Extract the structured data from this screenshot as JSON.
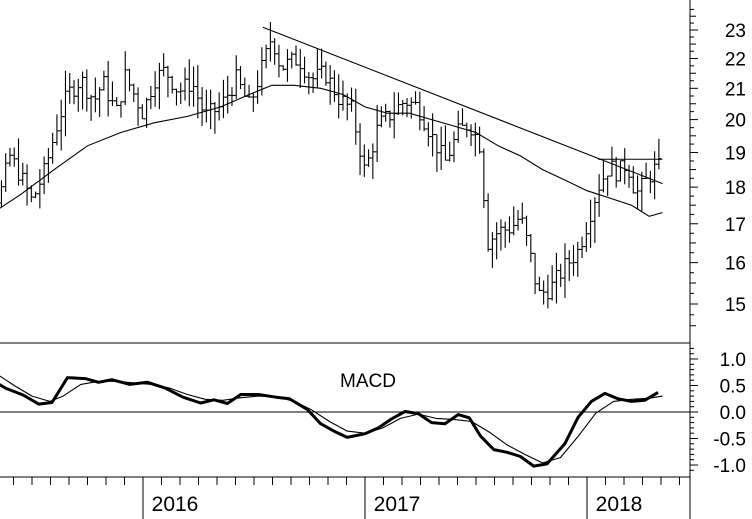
{
  "chart_data": [
    {
      "type": "bar",
      "subtype": "ohlc",
      "title": "",
      "yscale": "log",
      "ylim": [
        14.4,
        24.0
      ],
      "yticks": [
        15,
        16,
        17,
        18,
        19,
        20,
        21,
        22,
        23
      ],
      "ytick_labels": [
        "15",
        "16",
        "17",
        "18",
        "19",
        "20",
        "21",
        "22",
        "23"
      ],
      "x_range": [
        2015.17,
        2018.42
      ],
      "year_labels": [
        {
          "x": 2016,
          "label": "2016"
        },
        {
          "x": 2017,
          "label": "2017"
        },
        {
          "x": 2018,
          "label": "2018"
        }
      ],
      "price_path": [
        [
          2015.17,
          19.9
        ],
        [
          2015.25,
          19.5
        ],
        [
          2015.3,
          18.5
        ],
        [
          2015.35,
          17.6
        ],
        [
          2015.4,
          18.9
        ],
        [
          2015.45,
          18.3
        ],
        [
          2015.5,
          17.6
        ],
        [
          2015.56,
          18.5
        ],
        [
          2015.62,
          20.0
        ],
        [
          2015.66,
          20.8
        ],
        [
          2015.72,
          21.3
        ],
        [
          2015.78,
          20.6
        ],
        [
          2015.82,
          21.2
        ],
        [
          2015.88,
          20.2
        ],
        [
          2015.92,
          21.4
        ],
        [
          2016.0,
          20.2
        ],
        [
          2016.05,
          21.3
        ],
        [
          2016.1,
          21.6
        ],
        [
          2016.16,
          20.9
        ],
        [
          2016.22,
          21.2
        ],
        [
          2016.28,
          20.1
        ],
        [
          2016.35,
          20.4
        ],
        [
          2016.42,
          21.3
        ],
        [
          2016.48,
          20.4
        ],
        [
          2016.55,
          22.0
        ],
        [
          2016.58,
          22.8
        ],
        [
          2016.62,
          21.7
        ],
        [
          2016.7,
          22.0
        ],
        [
          2016.76,
          21.3
        ],
        [
          2016.82,
          21.5
        ],
        [
          2016.88,
          20.7
        ],
        [
          2016.94,
          20.3
        ],
        [
          2017.0,
          18.4
        ],
        [
          2017.06,
          19.8
        ],
        [
          2017.12,
          20.2
        ],
        [
          2017.18,
          20.6
        ],
        [
          2017.24,
          20.4
        ],
        [
          2017.3,
          19.5
        ],
        [
          2017.36,
          18.7
        ],
        [
          2017.42,
          19.6
        ],
        [
          2017.47,
          19.9
        ],
        [
          2017.52,
          19.2
        ],
        [
          2017.55,
          16.5
        ],
        [
          2017.6,
          16.8
        ],
        [
          2017.66,
          16.9
        ],
        [
          2017.7,
          17.2
        ],
        [
          2017.74,
          16.3
        ],
        [
          2017.78,
          15.2
        ],
        [
          2017.84,
          15.4
        ],
        [
          2017.9,
          15.9
        ],
        [
          2017.96,
          16.3
        ],
        [
          2018.0,
          17.0
        ],
        [
          2018.05,
          18.0
        ],
        [
          2018.1,
          18.6
        ],
        [
          2018.14,
          18.4
        ],
        [
          2018.18,
          18.7
        ],
        [
          2018.22,
          17.8
        ],
        [
          2018.26,
          18.1
        ],
        [
          2018.3,
          18.5
        ],
        [
          2018.34,
          18.6
        ]
      ],
      "moving_average": [
        [
          2015.17,
          16.2
        ],
        [
          2015.3,
          17.2
        ],
        [
          2015.45,
          17.8
        ],
        [
          2015.6,
          18.5
        ],
        [
          2015.75,
          19.2
        ],
        [
          2015.9,
          19.6
        ],
        [
          2016.05,
          19.9
        ],
        [
          2016.2,
          20.1
        ],
        [
          2016.35,
          20.4
        ],
        [
          2016.48,
          20.8
        ],
        [
          2016.58,
          21.1
        ],
        [
          2016.68,
          21.1
        ],
        [
          2016.8,
          21.0
        ],
        [
          2016.9,
          20.8
        ],
        [
          2017.0,
          20.4
        ],
        [
          2017.1,
          20.2
        ],
        [
          2017.2,
          20.2
        ],
        [
          2017.3,
          20.0
        ],
        [
          2017.4,
          19.8
        ],
        [
          2017.5,
          19.6
        ],
        [
          2017.6,
          19.2
        ],
        [
          2017.7,
          18.9
        ],
        [
          2017.8,
          18.5
        ],
        [
          2017.9,
          18.2
        ],
        [
          2018.0,
          17.9
        ],
        [
          2018.1,
          17.7
        ],
        [
          2018.2,
          17.5
        ],
        [
          2018.28,
          17.2
        ],
        [
          2018.34,
          17.3
        ]
      ],
      "trendlines": [
        {
          "x0": 2016.54,
          "y0": 23.1,
          "x1": 2018.34,
          "y1": 18.1
        },
        {
          "x0": 2018.05,
          "y0": 18.8,
          "x1": 2018.34,
          "y1": 18.8
        }
      ]
    },
    {
      "type": "line",
      "title": "MACD",
      "ylim": [
        -1.2,
        1.2
      ],
      "yticks": [
        1.0,
        0.5,
        0.0,
        -0.5,
        -1.0
      ],
      "ytick_labels": [
        "1.0",
        "0.5",
        "0.0",
        "-0.5",
        "-1.0"
      ],
      "zero_line": true,
      "series": [
        {
          "style": "thick",
          "points": [
            [
              2015.17,
              1.05
            ],
            [
              2015.24,
              0.98
            ],
            [
              2015.3,
              0.65
            ],
            [
              2015.38,
              0.45
            ],
            [
              2015.46,
              0.32
            ],
            [
              2015.53,
              0.15
            ],
            [
              2015.59,
              0.18
            ],
            [
              2015.66,
              0.65
            ],
            [
              2015.74,
              0.63
            ],
            [
              2015.8,
              0.56
            ],
            [
              2015.86,
              0.61
            ],
            [
              2015.94,
              0.52
            ],
            [
              2016.02,
              0.56
            ],
            [
              2016.1,
              0.45
            ],
            [
              2016.18,
              0.28
            ],
            [
              2016.26,
              0.17
            ],
            [
              2016.32,
              0.23
            ],
            [
              2016.38,
              0.16
            ],
            [
              2016.44,
              0.33
            ],
            [
              2016.52,
              0.33
            ],
            [
              2016.6,
              0.28
            ],
            [
              2016.66,
              0.25
            ],
            [
              2016.74,
              0.05
            ],
            [
              2016.8,
              -0.22
            ],
            [
              2016.86,
              -0.36
            ],
            [
              2016.92,
              -0.48
            ],
            [
              2017.0,
              -0.41
            ],
            [
              2017.06,
              -0.3
            ],
            [
              2017.12,
              -0.13
            ],
            [
              2017.18,
              0.01
            ],
            [
              2017.24,
              -0.03
            ],
            [
              2017.3,
              -0.2
            ],
            [
              2017.36,
              -0.22
            ],
            [
              2017.42,
              -0.05
            ],
            [
              2017.47,
              -0.11
            ],
            [
              2017.52,
              -0.45
            ],
            [
              2017.58,
              -0.71
            ],
            [
              2017.64,
              -0.76
            ],
            [
              2017.7,
              -0.84
            ],
            [
              2017.76,
              -1.02
            ],
            [
              2017.82,
              -0.98
            ],
            [
              2017.9,
              -0.6
            ],
            [
              2017.96,
              -0.1
            ],
            [
              2018.02,
              0.2
            ],
            [
              2018.08,
              0.35
            ],
            [
              2018.14,
              0.25
            ],
            [
              2018.2,
              0.2
            ],
            [
              2018.26,
              0.22
            ],
            [
              2018.32,
              0.37
            ]
          ]
        },
        {
          "style": "thin",
          "points": [
            [
              2015.17,
              1.0
            ],
            [
              2015.26,
              0.9
            ],
            [
              2015.34,
              0.72
            ],
            [
              2015.42,
              0.5
            ],
            [
              2015.5,
              0.3
            ],
            [
              2015.58,
              0.2
            ],
            [
              2015.64,
              0.3
            ],
            [
              2015.72,
              0.52
            ],
            [
              2015.8,
              0.58
            ],
            [
              2015.88,
              0.58
            ],
            [
              2015.96,
              0.55
            ],
            [
              2016.04,
              0.52
            ],
            [
              2016.12,
              0.45
            ],
            [
              2016.2,
              0.33
            ],
            [
              2016.28,
              0.24
            ],
            [
              2016.36,
              0.22
            ],
            [
              2016.44,
              0.27
            ],
            [
              2016.52,
              0.3
            ],
            [
              2016.6,
              0.29
            ],
            [
              2016.68,
              0.2
            ],
            [
              2016.76,
              0.04
            ],
            [
              2016.84,
              -0.18
            ],
            [
              2016.92,
              -0.36
            ],
            [
              2017.0,
              -0.4
            ],
            [
              2017.08,
              -0.3
            ],
            [
              2017.16,
              -0.12
            ],
            [
              2017.24,
              -0.04
            ],
            [
              2017.32,
              -0.12
            ],
            [
              2017.4,
              -0.14
            ],
            [
              2017.48,
              -0.18
            ],
            [
              2017.56,
              -0.38
            ],
            [
              2017.64,
              -0.62
            ],
            [
              2017.72,
              -0.8
            ],
            [
              2017.8,
              -0.96
            ],
            [
              2017.88,
              -0.86
            ],
            [
              2017.96,
              -0.46
            ],
            [
              2018.04,
              -0.02
            ],
            [
              2018.12,
              0.2
            ],
            [
              2018.2,
              0.24
            ],
            [
              2018.28,
              0.26
            ],
            [
              2018.34,
              0.3
            ]
          ]
        }
      ]
    }
  ]
}
